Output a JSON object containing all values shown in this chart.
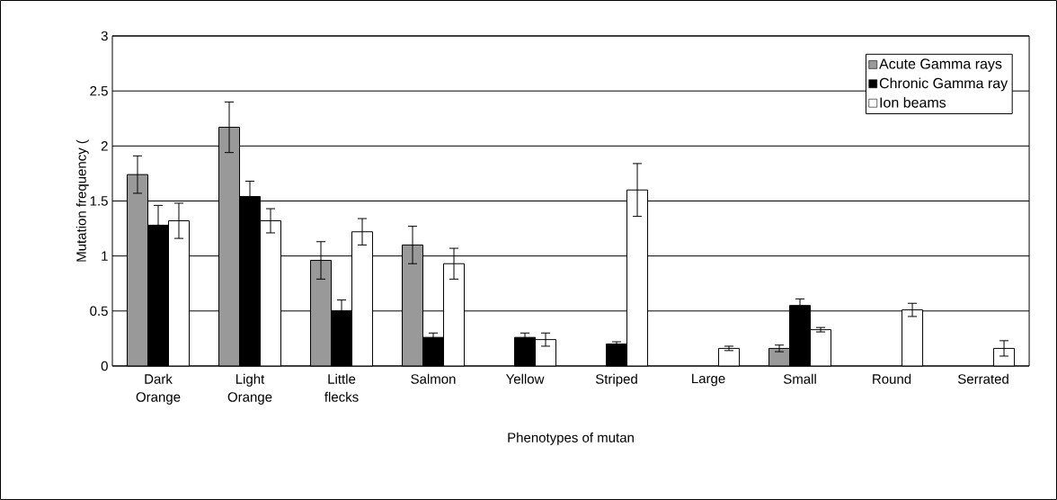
{
  "chart_data": {
    "type": "bar",
    "xlabel": "Phenotypes of mutan",
    "ylabel": "Mutation frequency (",
    "categories": [
      "Dark Orange",
      "Light Orange",
      "Little flecks",
      "Salmon",
      "Yellow",
      "Striped",
      "Large",
      "Small",
      "Round",
      "Serrated"
    ],
    "series": [
      {
        "name": "Acute Gamma rays",
        "color": "#999999",
        "values": [
          1.74,
          2.17,
          0.96,
          1.1,
          null,
          null,
          null,
          0.16,
          null,
          null
        ],
        "errors": [
          0.17,
          0.23,
          0.17,
          0.17,
          null,
          null,
          null,
          0.03,
          null,
          null
        ]
      },
      {
        "name": "Chronic Gamma ray",
        "color": "#000000",
        "values": [
          1.28,
          1.54,
          0.5,
          0.26,
          0.26,
          0.2,
          null,
          0.55,
          null,
          null
        ],
        "errors": [
          0.18,
          0.14,
          0.1,
          0.04,
          0.04,
          0.02,
          null,
          0.06,
          null,
          null
        ]
      },
      {
        "name": "Ion beams",
        "color": "#ffffff",
        "values": [
          1.32,
          1.32,
          1.22,
          0.93,
          0.24,
          1.6,
          0.16,
          0.33,
          0.51,
          0.16
        ],
        "errors": [
          0.16,
          0.11,
          0.12,
          0.14,
          0.06,
          0.24,
          0.02,
          0.02,
          0.06,
          0.07
        ]
      }
    ],
    "ylim": [
      0,
      3
    ],
    "yticks": [
      0,
      0.5,
      1,
      1.5,
      2,
      2.5,
      3
    ],
    "grid": "y",
    "legend": "top right"
  }
}
